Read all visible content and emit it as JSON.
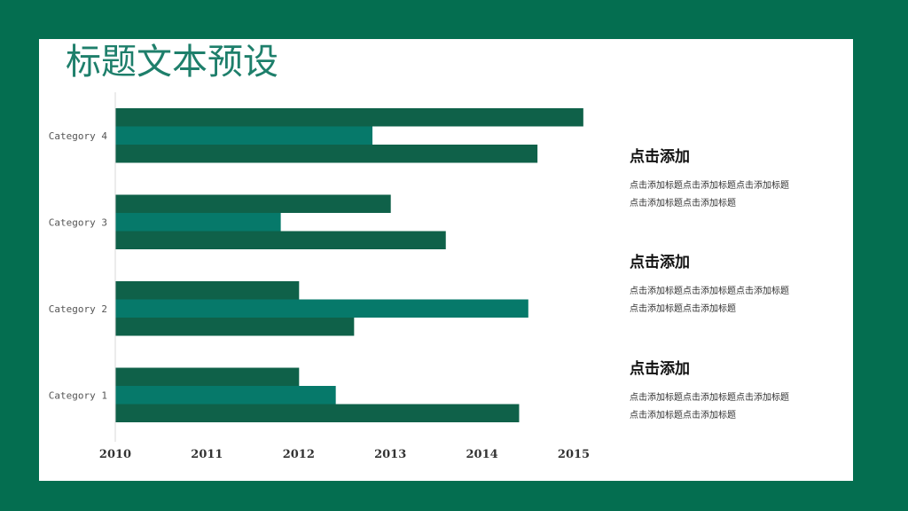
{
  "slide": {
    "title": "标题文本预设",
    "background_color": "#046E50",
    "panel_color": "#FFFFFF",
    "title_color": "#1E7F6B"
  },
  "chart_data": {
    "type": "bar",
    "orientation": "horizontal",
    "title": "",
    "xlabel": "",
    "ylabel": "",
    "categories": [
      "Category 1",
      "Category 2",
      "Category 3",
      "Category 4"
    ],
    "xlim": [
      2010,
      2015
    ],
    "x_ticks": [
      "2010",
      "2011",
      "2012",
      "2013",
      "2014",
      "2015"
    ],
    "grid": false,
    "legend": "none",
    "series": [
      {
        "values": [
          2014.4,
          2012.6,
          2013.6,
          2014.6
        ],
        "color": "#0F6149"
      },
      {
        "values": [
          2012.4,
          2014.5,
          2011.8,
          2012.8
        ],
        "color": "#06796A"
      },
      {
        "values": [
          2012.0,
          2012.0,
          2013.0,
          2015.1
        ],
        "color": "#0F6149"
      }
    ]
  },
  "side_panel": {
    "items": [
      {
        "heading": "点击添加",
        "text": "点击添加标题点击添加标题点击添加标题点击添加标题点击添加标题"
      },
      {
        "heading": "点击添加",
        "text": "点击添加标题点击添加标题点击添加标题点击添加标题点击添加标题"
      },
      {
        "heading": "点击添加",
        "text": "点击添加标题点击添加标题点击添加标题点击添加标题点击添加标题"
      }
    ]
  }
}
